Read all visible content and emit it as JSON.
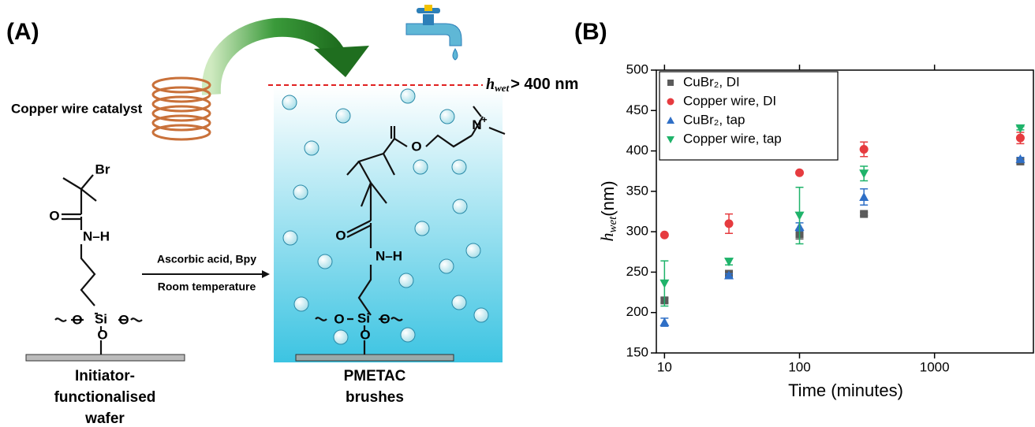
{
  "panel_a": {
    "label": "(A)",
    "catalyst_label": "Copper wire catalyst",
    "height_label": {
      "symbol": "h",
      "subscript": "wet",
      "text": "> 400 nm"
    },
    "reaction_conditions": [
      "Ascorbic acid, Bpy",
      "Room temperature"
    ],
    "initiator_label": [
      "Initiator-",
      "functionalised",
      "wafer"
    ],
    "brush_label": [
      "PMETAC",
      "brushes"
    ],
    "initiator_atoms": [
      "Br",
      "O",
      "N–H",
      "O",
      "Si",
      "O",
      "O"
    ],
    "brush_atoms": [
      "N",
      "+",
      "O",
      "O",
      "N–H",
      "O",
      "Si",
      "O",
      "O"
    ]
  },
  "chart_data": {
    "type": "scatter",
    "panel_label": "(B)",
    "x_label": "Time (minutes)",
    "y_label": {
      "symbol": "h",
      "subscript": "wet",
      "unit": "(nm)"
    },
    "x": [
      10,
      30,
      100,
      300,
      4320
    ],
    "x_log": true,
    "xlim": [
      8.7,
      5400
    ],
    "xticks": [
      10,
      100,
      1000
    ],
    "ylim": [
      150,
      500
    ],
    "yticks": [
      150,
      200,
      250,
      300,
      350,
      400,
      450,
      500
    ],
    "legend": "upper left",
    "series": [
      {
        "name": "CuBr₂, DI",
        "color": "#5b5b5b",
        "marker": "square",
        "values": [
          215,
          248,
          297,
          322,
          387
        ],
        "errors": [
          3,
          2,
          6,
          2,
          2
        ]
      },
      {
        "name": "Copper wire, DI",
        "color": "#e63b3f",
        "marker": "circle",
        "values": [
          296,
          310,
          373,
          402,
          416
        ],
        "errors": [
          1,
          12,
          1,
          9,
          7
        ]
      },
      {
        "name": "CuBr₂, tap",
        "color": "#2f6fc6",
        "marker": "triangle-up",
        "values": [
          188,
          246,
          306,
          343,
          390
        ],
        "errors": [
          5,
          2,
          5,
          10,
          2
        ]
      },
      {
        "name": "Copper wire, tap",
        "color": "#1fb36a",
        "marker": "triangle-down",
        "values": [
          236,
          263,
          320,
          372,
          428
        ],
        "errors": [
          28,
          4,
          35,
          9,
          2
        ]
      }
    ]
  }
}
